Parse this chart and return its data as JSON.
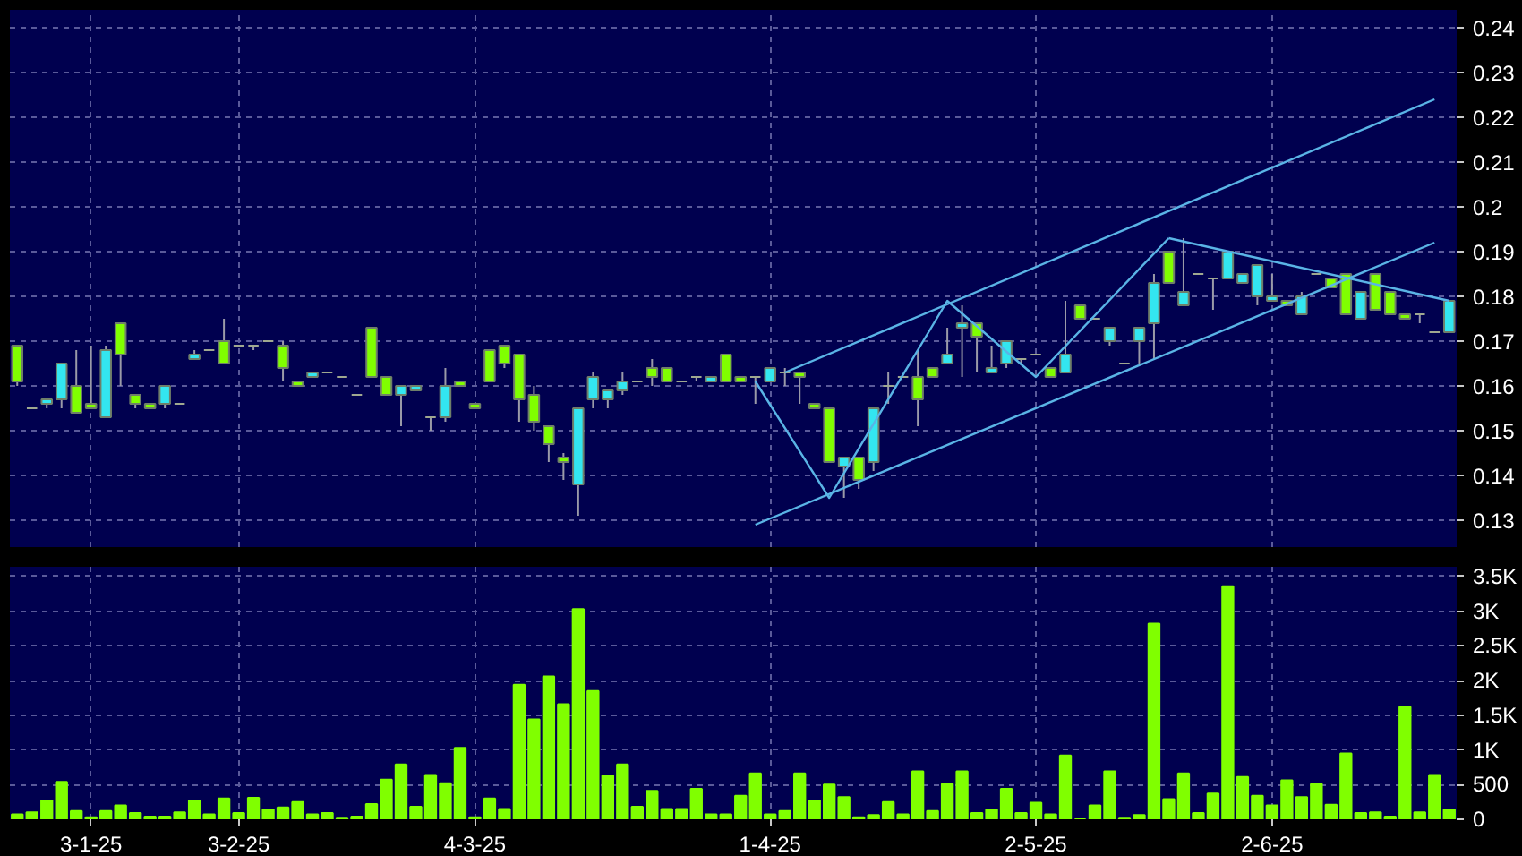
{
  "chart_data": [
    {
      "type": "candlestick",
      "categories": [
        null,
        null,
        null,
        null,
        null,
        null,
        null,
        null,
        null,
        null,
        null,
        null,
        null,
        null,
        null,
        null,
        null,
        null,
        null,
        null,
        null,
        null,
        null,
        null,
        null,
        null,
        null,
        null,
        null,
        null,
        null,
        null,
        null,
        null,
        null,
        null,
        null,
        null,
        null,
        null,
        null,
        null,
        null,
        null,
        null,
        null,
        null,
        null,
        null,
        null,
        null,
        null,
        null,
        null,
        null,
        null,
        null,
        null,
        null,
        null,
        null,
        null,
        null,
        null,
        null,
        null,
        null,
        null,
        null,
        null,
        null,
        null,
        null,
        null,
        null,
        null,
        null,
        null,
        null,
        null,
        null,
        null,
        null,
        null,
        null,
        null,
        null,
        null,
        null,
        null,
        null,
        null,
        null,
        null,
        null,
        null,
        null,
        null
      ],
      "ohlc": [
        [
          0.169,
          0.169,
          0.16,
          0.161
        ],
        [
          0.155,
          0.155,
          0.155,
          0.155
        ],
        [
          0.156,
          0.157,
          0.155,
          0.157
        ],
        [
          0.157,
          0.165,
          0.155,
          0.165
        ],
        [
          0.16,
          0.168,
          0.154,
          0.154
        ],
        [
          0.156,
          0.169,
          0.155,
          0.155
        ],
        [
          0.153,
          0.169,
          0.153,
          0.168
        ],
        [
          0.174,
          0.174,
          0.16,
          0.167
        ],
        [
          0.158,
          0.158,
          0.155,
          0.156
        ],
        [
          0.156,
          0.156,
          0.155,
          0.155
        ],
        [
          0.156,
          0.16,
          0.155,
          0.16
        ],
        [
          0.156,
          0.156,
          0.156,
          0.156
        ],
        [
          0.166,
          0.168,
          0.166,
          0.167
        ],
        [
          0.168,
          0.168,
          0.168,
          0.168
        ],
        [
          0.17,
          0.175,
          0.165,
          0.165
        ],
        [
          0.169,
          0.169,
          0.169,
          0.169
        ],
        [
          0.169,
          0.169,
          0.168,
          0.169
        ],
        [
          0.17,
          0.17,
          0.17,
          0.17
        ],
        [
          0.169,
          0.17,
          0.161,
          0.164
        ],
        [
          0.161,
          0.161,
          0.16,
          0.16
        ],
        [
          0.162,
          0.163,
          0.162,
          0.163
        ],
        [
          0.163,
          0.163,
          0.163,
          0.163
        ],
        [
          0.162,
          0.162,
          0.162,
          0.162
        ],
        [
          0.158,
          0.158,
          0.158,
          0.158
        ],
        [
          0.173,
          0.173,
          0.162,
          0.162
        ],
        [
          0.162,
          0.162,
          0.158,
          0.158
        ],
        [
          0.158,
          0.16,
          0.151,
          0.16
        ],
        [
          0.159,
          0.16,
          0.159,
          0.16
        ],
        [
          0.153,
          0.153,
          0.15,
          0.153
        ],
        [
          0.153,
          0.164,
          0.152,
          0.16
        ],
        [
          0.161,
          0.161,
          0.16,
          0.16
        ],
        [
          0.156,
          0.156,
          0.155,
          0.155
        ],
        [
          0.168,
          0.168,
          0.161,
          0.161
        ],
        [
          0.169,
          0.169,
          0.164,
          0.165
        ],
        [
          0.167,
          0.167,
          0.152,
          0.157
        ],
        [
          0.158,
          0.16,
          0.15,
          0.152
        ],
        [
          0.151,
          0.151,
          0.143,
          0.147
        ],
        [
          0.144,
          0.145,
          0.139,
          0.143
        ],
        [
          0.138,
          0.155,
          0.131,
          0.155
        ],
        [
          0.157,
          0.163,
          0.155,
          0.162
        ],
        [
          0.157,
          0.159,
          0.155,
          0.159
        ],
        [
          0.159,
          0.163,
          0.158,
          0.161
        ],
        [
          0.161,
          0.161,
          0.161,
          0.161
        ],
        [
          0.164,
          0.166,
          0.16,
          0.162
        ],
        [
          0.164,
          0.164,
          0.161,
          0.161
        ],
        [
          0.161,
          0.161,
          0.161,
          0.161
        ],
        [
          0.162,
          0.162,
          0.161,
          0.162
        ],
        [
          0.161,
          0.162,
          0.161,
          0.162
        ],
        [
          0.167,
          0.167,
          0.161,
          0.161
        ],
        [
          0.162,
          0.162,
          0.161,
          0.161
        ],
        [
          0.162,
          0.162,
          0.156,
          0.162
        ],
        [
          0.161,
          0.164,
          0.161,
          0.164
        ],
        [
          0.163,
          0.164,
          0.16,
          0.163
        ],
        [
          0.163,
          0.163,
          0.156,
          0.162
        ],
        [
          0.156,
          0.156,
          0.155,
          0.155
        ],
        [
          0.155,
          0.155,
          0.143,
          0.143
        ],
        [
          0.142,
          0.144,
          0.135,
          0.144
        ],
        [
          0.144,
          0.144,
          0.137,
          0.139
        ],
        [
          0.143,
          0.155,
          0.141,
          0.155
        ],
        [
          0.16,
          0.163,
          0.156,
          0.16
        ],
        [
          0.162,
          0.162,
          0.162,
          0.162
        ],
        [
          0.162,
          0.168,
          0.151,
          0.157
        ],
        [
          0.164,
          0.164,
          0.162,
          0.162
        ],
        [
          0.165,
          0.173,
          0.165,
          0.167
        ],
        [
          0.173,
          0.178,
          0.162,
          0.174
        ],
        [
          0.174,
          0.174,
          0.163,
          0.171
        ],
        [
          0.163,
          0.169,
          0.163,
          0.164
        ],
        [
          0.165,
          0.17,
          0.164,
          0.17
        ],
        [
          0.166,
          0.166,
          0.165,
          0.166
        ],
        [
          0.167,
          0.167,
          0.167,
          0.167
        ],
        [
          0.164,
          0.164,
          0.162,
          0.162
        ],
        [
          0.163,
          0.179,
          0.163,
          0.167
        ],
        [
          0.178,
          0.178,
          0.175,
          0.175
        ],
        [
          0.175,
          0.175,
          0.175,
          0.175
        ],
        [
          0.17,
          0.173,
          0.169,
          0.173
        ],
        [
          0.165,
          0.165,
          0.165,
          0.165
        ],
        [
          0.17,
          0.173,
          0.165,
          0.173
        ],
        [
          0.174,
          0.185,
          0.166,
          0.183
        ],
        [
          0.19,
          0.19,
          0.183,
          0.183
        ],
        [
          0.178,
          0.193,
          0.178,
          0.181
        ],
        [
          0.185,
          0.185,
          0.185,
          0.185
        ],
        [
          0.184,
          0.184,
          0.177,
          0.184
        ],
        [
          0.184,
          0.19,
          0.184,
          0.19
        ],
        [
          0.183,
          0.185,
          0.183,
          0.185
        ],
        [
          0.18,
          0.187,
          0.178,
          0.187
        ],
        [
          0.179,
          0.185,
          0.179,
          0.18
        ],
        [
          0.179,
          0.179,
          0.178,
          0.178
        ],
        [
          0.176,
          0.181,
          0.176,
          0.18
        ],
        [
          0.185,
          0.185,
          0.185,
          0.185
        ],
        [
          0.184,
          0.184,
          0.182,
          0.182
        ],
        [
          0.185,
          0.185,
          0.176,
          0.176
        ],
        [
          0.175,
          0.181,
          0.175,
          0.181
        ],
        [
          0.185,
          0.185,
          0.177,
          0.177
        ],
        [
          0.181,
          0.181,
          0.176,
          0.176
        ],
        [
          0.176,
          0.176,
          0.175,
          0.175
        ],
        [
          0.176,
          0.176,
          0.174,
          0.176
        ],
        [
          0.172,
          0.172,
          0.172,
          0.172
        ],
        [
          0.172,
          0.179,
          0.172,
          0.179
        ]
      ],
      "colors": [
        "#80ff00",
        "#a0a890",
        "#33e6f0",
        "#33e6f0",
        "#80ff00",
        "#80ff00",
        "#33e6f0",
        "#80ff00",
        "#80ff00",
        "#80ff00",
        "#33e6f0",
        "#a0a890",
        "#33e6f0",
        "#a0a890",
        "#80ff00",
        "#a0a890",
        "#a0a890",
        "#a0a890",
        "#80ff00",
        "#80ff00",
        "#33e6f0",
        "#a0a890",
        "#a0a890",
        "#a0a890",
        "#80ff00",
        "#80ff00",
        "#33e6f0",
        "#33e6f0",
        "#a0a890",
        "#33e6f0",
        "#80ff00",
        "#80ff00",
        "#80ff00",
        "#80ff00",
        "#80ff00",
        "#80ff00",
        "#80ff00",
        "#80ff00",
        "#33e6f0",
        "#33e6f0",
        "#33e6f0",
        "#33e6f0",
        "#a0a890",
        "#80ff00",
        "#80ff00",
        "#a0a890",
        "#a0a890",
        "#33e6f0",
        "#80ff00",
        "#80ff00",
        "#a0a890",
        "#33e6f0",
        "#a0a890",
        "#80ff00",
        "#80ff00",
        "#80ff00",
        "#33e6f0",
        "#80ff00",
        "#33e6f0",
        "#a0a890",
        "#a0a890",
        "#80ff00",
        "#80ff00",
        "#33e6f0",
        "#33e6f0",
        "#80ff00",
        "#33e6f0",
        "#33e6f0",
        "#a0a890",
        "#a0a890",
        "#80ff00",
        "#33e6f0",
        "#80ff00",
        "#a0a890",
        "#33e6f0",
        "#a0a890",
        "#33e6f0",
        "#33e6f0",
        "#80ff00",
        "#33e6f0",
        "#a0a890",
        "#a0a890",
        "#33e6f0",
        "#33e6f0",
        "#33e6f0",
        "#33e6f0",
        "#80ff00",
        "#33e6f0",
        "#a0a890",
        "#80ff00",
        "#80ff00",
        "#33e6f0",
        "#80ff00",
        "#80ff00",
        "#80ff00",
        "#a0a890",
        "#a0a890",
        "#33e6f0"
      ],
      "series": [
        {
          "type": "line",
          "color": "#5ab4e6",
          "values": [
            null,
            null,
            null,
            null,
            null,
            null,
            null,
            null,
            null,
            null,
            null,
            null,
            null,
            null,
            null,
            null,
            null,
            null,
            null,
            null,
            null,
            null,
            null,
            null,
            null,
            null,
            null,
            null,
            null,
            null,
            null,
            null,
            null,
            null,
            null,
            null,
            null,
            null,
            null,
            null,
            null,
            null,
            null,
            null,
            null,
            null,
            null,
            null,
            null,
            null,
            null,
            null,
            0.163,
            null,
            null,
            null,
            null,
            null,
            null,
            null,
            null,
            null,
            null,
            null,
            null,
            null,
            null,
            null,
            null,
            null,
            null,
            null,
            null,
            null,
            null,
            null,
            null,
            null,
            null,
            null,
            null,
            null,
            null,
            null,
            null,
            null,
            null,
            null,
            null,
            null,
            null,
            null,
            null,
            null,
            null,
            null,
            0.224,
            null
          ]
        },
        {
          "type": "line",
          "color": "#5ab4e6",
          "values": [
            null,
            null,
            null,
            null,
            null,
            null,
            null,
            null,
            null,
            null,
            null,
            null,
            null,
            null,
            null,
            null,
            null,
            null,
            null,
            null,
            null,
            null,
            null,
            null,
            null,
            null,
            null,
            null,
            null,
            null,
            null,
            null,
            null,
            null,
            null,
            null,
            null,
            null,
            null,
            null,
            null,
            null,
            null,
            null,
            null,
            null,
            null,
            null,
            null,
            null,
            0.129,
            null,
            null,
            null,
            null,
            null,
            null,
            null,
            null,
            null,
            null,
            null,
            null,
            null,
            null,
            null,
            null,
            null,
            null,
            null,
            null,
            null,
            null,
            null,
            null,
            null,
            null,
            null,
            null,
            null,
            null,
            null,
            null,
            null,
            null,
            null,
            null,
            null,
            null,
            null,
            null,
            null,
            null,
            null,
            null,
            null,
            0.192,
            null
          ]
        },
        {
          "type": "line",
          "color": "#5ab4e6",
          "values": [
            null,
            null,
            null,
            null,
            null,
            null,
            null,
            null,
            null,
            null,
            null,
            null,
            null,
            null,
            null,
            null,
            null,
            null,
            null,
            null,
            null,
            null,
            null,
            null,
            null,
            null,
            null,
            null,
            null,
            null,
            null,
            null,
            null,
            null,
            null,
            null,
            null,
            null,
            null,
            null,
            null,
            null,
            null,
            null,
            null,
            null,
            null,
            null,
            null,
            null,
            0.161,
            null,
            null,
            null,
            null,
            0.135,
            null,
            null,
            null,
            null,
            null,
            null,
            null,
            0.179,
            null,
            null,
            null,
            null,
            null,
            0.162,
            null,
            null,
            null,
            null,
            null,
            null,
            null,
            null,
            0.193,
            null,
            null,
            null,
            null,
            null,
            null,
            null,
            null,
            null,
            null,
            null,
            null,
            null,
            null,
            null,
            null,
            null,
            null,
            null
          ]
        },
        {
          "type": "line",
          "color": "#5ab4e6",
          "values": [
            null,
            null,
            null,
            null,
            null,
            null,
            null,
            null,
            null,
            null,
            null,
            null,
            null,
            null,
            null,
            null,
            null,
            null,
            null,
            null,
            null,
            null,
            null,
            null,
            null,
            null,
            null,
            null,
            null,
            null,
            null,
            null,
            null,
            null,
            null,
            null,
            null,
            null,
            null,
            null,
            null,
            null,
            null,
            null,
            null,
            null,
            null,
            null,
            null,
            null,
            null,
            null,
            null,
            null,
            null,
            null,
            null,
            null,
            null,
            null,
            null,
            null,
            null,
            null,
            null,
            null,
            null,
            null,
            null,
            null,
            null,
            null,
            null,
            null,
            null,
            null,
            null,
            null,
            0.193,
            null,
            null,
            null,
            null,
            null,
            null,
            null,
            null,
            null,
            null,
            null,
            null,
            null,
            null,
            null,
            null,
            null,
            null,
            0.179
          ]
        }
      ],
      "ylim": [
        0.124,
        0.244
      ],
      "yticks": [
        0.13,
        0.14,
        0.15,
        0.16,
        0.17,
        0.18,
        0.19,
        0.2,
        0.21,
        0.22,
        0.23,
        0.24
      ],
      "tick_labels": "y",
      "grid": true
    },
    {
      "type": "bar",
      "categories": [
        null,
        null,
        null,
        null,
        null,
        "3-1-25",
        null,
        null,
        null,
        null,
        null,
        null,
        null,
        null,
        null,
        "3-2-25",
        null,
        null,
        null,
        null,
        null,
        null,
        null,
        null,
        null,
        null,
        null,
        null,
        null,
        null,
        null,
        "4-3-25",
        null,
        null,
        null,
        null,
        null,
        null,
        null,
        null,
        null,
        null,
        null,
        null,
        null,
        null,
        null,
        null,
        null,
        null,
        null,
        "1-4-25",
        null,
        null,
        null,
        null,
        null,
        null,
        null,
        null,
        null,
        null,
        null,
        null,
        null,
        null,
        null,
        null,
        null,
        "2-5-25",
        null,
        null,
        null,
        null,
        null,
        null,
        null,
        null,
        null,
        null,
        null,
        null,
        null,
        null,
        null,
        "2-6-25",
        null,
        null,
        null,
        null,
        null,
        null,
        null,
        null,
        null,
        null,
        null,
        null
      ],
      "values": [
        70,
        100,
        270,
        540,
        120,
        30,
        120,
        200,
        90,
        40,
        40,
        100,
        270,
        70,
        300,
        90,
        310,
        140,
        170,
        250,
        70,
        90,
        10,
        40,
        220,
        570,
        790,
        180,
        640,
        520,
        1030,
        30,
        300,
        150,
        1940,
        1440,
        2060,
        1660,
        3030,
        1850,
        630,
        790,
        180,
        410,
        150,
        150,
        440,
        70,
        70,
        340,
        660,
        70,
        120,
        660,
        270,
        500,
        320,
        30,
        60,
        250,
        70,
        690,
        120,
        510,
        690,
        90,
        140,
        440,
        90,
        240,
        70,
        920,
        0,
        200,
        690,
        10,
        60,
        2820,
        290,
        660,
        90,
        370,
        3360,
        610,
        340,
        200,
        560,
        320,
        510,
        210,
        950,
        90,
        100,
        40,
        1620,
        100,
        640,
        140
      ],
      "color": "#80ff00",
      "ylim": [
        0,
        3640
      ],
      "yticks": [
        0,
        500,
        {
          "value": 1000,
          "label": "1K"
        },
        {
          "value": 1500,
          "label": "1.5K"
        },
        {
          "value": 2000,
          "label": "2K"
        },
        {
          "value": 2500,
          "label": "2.5K"
        },
        {
          "value": 3000,
          "label": "3K"
        },
        {
          "value": 3500,
          "label": "3.5K"
        }
      ],
      "grid": true
    }
  ]
}
